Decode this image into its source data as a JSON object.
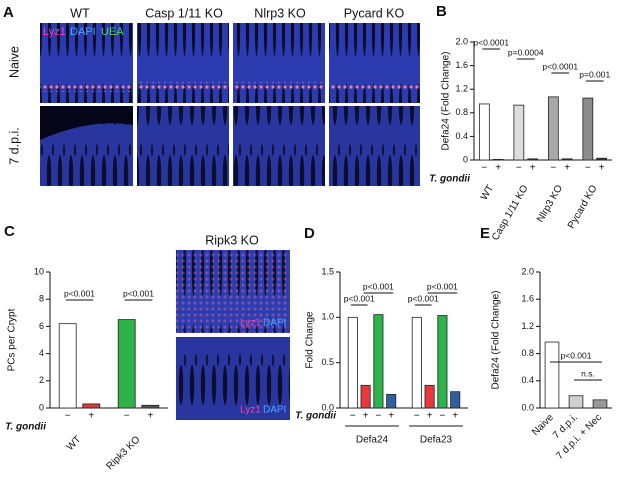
{
  "figure": {
    "panel_a": {
      "label": "A",
      "columns": [
        "WT",
        "Casp 1/11 KO",
        "Nlrp3 KO",
        "Pycard KO"
      ],
      "rows": [
        "Naive",
        "7 d.p.i."
      ],
      "stains": [
        "Lyz1",
        "DAPI",
        "UEA"
      ]
    },
    "panel_c_images": {
      "title": "Ripk3 KO",
      "stains": [
        "Lyz1",
        "DAPI"
      ]
    }
  },
  "chart_data": [
    {
      "type": "bar",
      "panel": "B",
      "ylabel": "Defa24 (Fold Change)",
      "treatment_label": "T. gondii",
      "categories": [
        "WT",
        "Casp 1/11 KO",
        "Nlrp3 KO",
        "Pycard KO"
      ],
      "series": [
        {
          "name": "−",
          "colors": [
            "#ffffff",
            "#dcdcdc",
            "#a8a8a8",
            "#8c8c8c"
          ],
          "values": [
            0.95,
            0.93,
            1.07,
            1.05
          ]
        },
        {
          "name": "+",
          "colors": [
            "#404040",
            "#404040",
            "#404040",
            "#404040"
          ],
          "values": [
            0.01,
            0.02,
            0.02,
            0.03
          ]
        }
      ],
      "ylim": [
        0,
        2
      ],
      "yticks": [
        0,
        0.4,
        0.8,
        1.2,
        1.6,
        {
          "value": 2,
          "label": "2.0"
        }
      ],
      "annotations": [
        "p<0.0001",
        "p=0.0004",
        "p<0.0001",
        "p=0.001"
      ]
    },
    {
      "type": "bar",
      "panel": "C",
      "ylabel": "PCs per Crypt",
      "treatment_label": "T. gondii",
      "categories": [
        "WT",
        "Ripk3 KO"
      ],
      "series": [
        {
          "name": "−",
          "colors": [
            "#ffffff",
            "#2db34a"
          ],
          "values": [
            6.2,
            6.5
          ]
        },
        {
          "name": "+",
          "colors": [
            "#d93a3a",
            "#555555"
          ],
          "values": [
            0.3,
            0.2
          ]
        }
      ],
      "ylim": [
        0,
        10
      ],
      "yticks": [
        0,
        2,
        4,
        6,
        8,
        10
      ],
      "annotations": [
        "p<0.001",
        "p<0.001"
      ]
    },
    {
      "type": "bar",
      "panel": "D",
      "ylabel": "Fold Change",
      "treatment_label": "T. gondii",
      "categories": [
        "Defa24",
        "Defa23"
      ],
      "series": [
        {
          "name": "−",
          "colors": [
            "#ffffff",
            "#ffffff"
          ],
          "values": [
            1.0,
            1.0
          ]
        },
        {
          "name": "+",
          "colors": [
            "#e8383d",
            "#e8383d"
          ],
          "values": [
            0.25,
            0.25
          ]
        },
        {
          "name": "−",
          "colors": [
            "#2db34a",
            "#2db34a"
          ],
          "values": [
            1.03,
            1.02
          ]
        },
        {
          "name": "+",
          "colors": [
            "#2f5f9e",
            "#2f5f9e"
          ],
          "values": [
            0.15,
            0.18
          ]
        }
      ],
      "ylim": [
        0,
        1.5
      ],
      "yticks": [
        {
          "value": 0,
          "label": "0.0"
        },
        {
          "value": 0.5,
          "label": "0.5"
        },
        {
          "value": 1,
          "label": "1.0"
        },
        {
          "value": 1.5,
          "label": "1.5"
        }
      ],
      "annotations": [
        "p<0.001",
        "p<0.001",
        "p<0.001",
        "p<0.001"
      ]
    },
    {
      "type": "bar",
      "panel": "E",
      "ylabel": "Defa24 (Fold Change)",
      "categories": [
        "Naive",
        "7 d.p.i.",
        "7 d.p.i. + Nec"
      ],
      "values": [
        0.97,
        0.18,
        0.12
      ],
      "colors": [
        "#ffffff",
        "#d0d0d0",
        "#9a9a9a"
      ],
      "ylim": [
        0,
        2
      ],
      "yticks": [
        {
          "value": 0,
          "label": "0.0"
        },
        {
          "value": 0.4,
          "label": "0.4"
        },
        {
          "value": 0.8,
          "label": "0.8"
        },
        {
          "value": 1.2,
          "label": "1.2"
        },
        {
          "value": 1.6,
          "label": "1.6"
        },
        {
          "value": 2,
          "label": "2.0"
        }
      ],
      "annotations": [
        "p<0.001",
        "n.s."
      ]
    }
  ]
}
